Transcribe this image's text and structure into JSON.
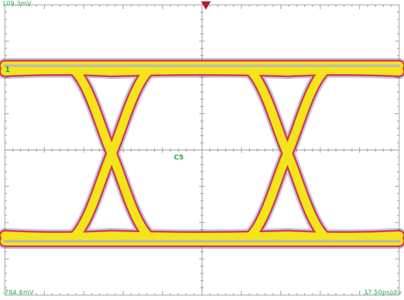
{
  "scope": {
    "top_scale_label": "109.3mV",
    "bottom_scale_label": "-784.6mV",
    "time_scale_label": "37.50ps/div",
    "channel_label": "C5",
    "ground_marker": "1"
  },
  "colors": {
    "grid": "#9a9a9a",
    "trace_core": "#b9b9b9",
    "trace_mid": "#f3e51a",
    "trace_edge": "#d81e3c",
    "trace_halo": "#5a5ab0",
    "label": "#2aa84a",
    "trigger": "#b0202a"
  },
  "icons": {
    "trigger": "trigger-triangle-icon",
    "ground": "ground-level-icon"
  }
}
